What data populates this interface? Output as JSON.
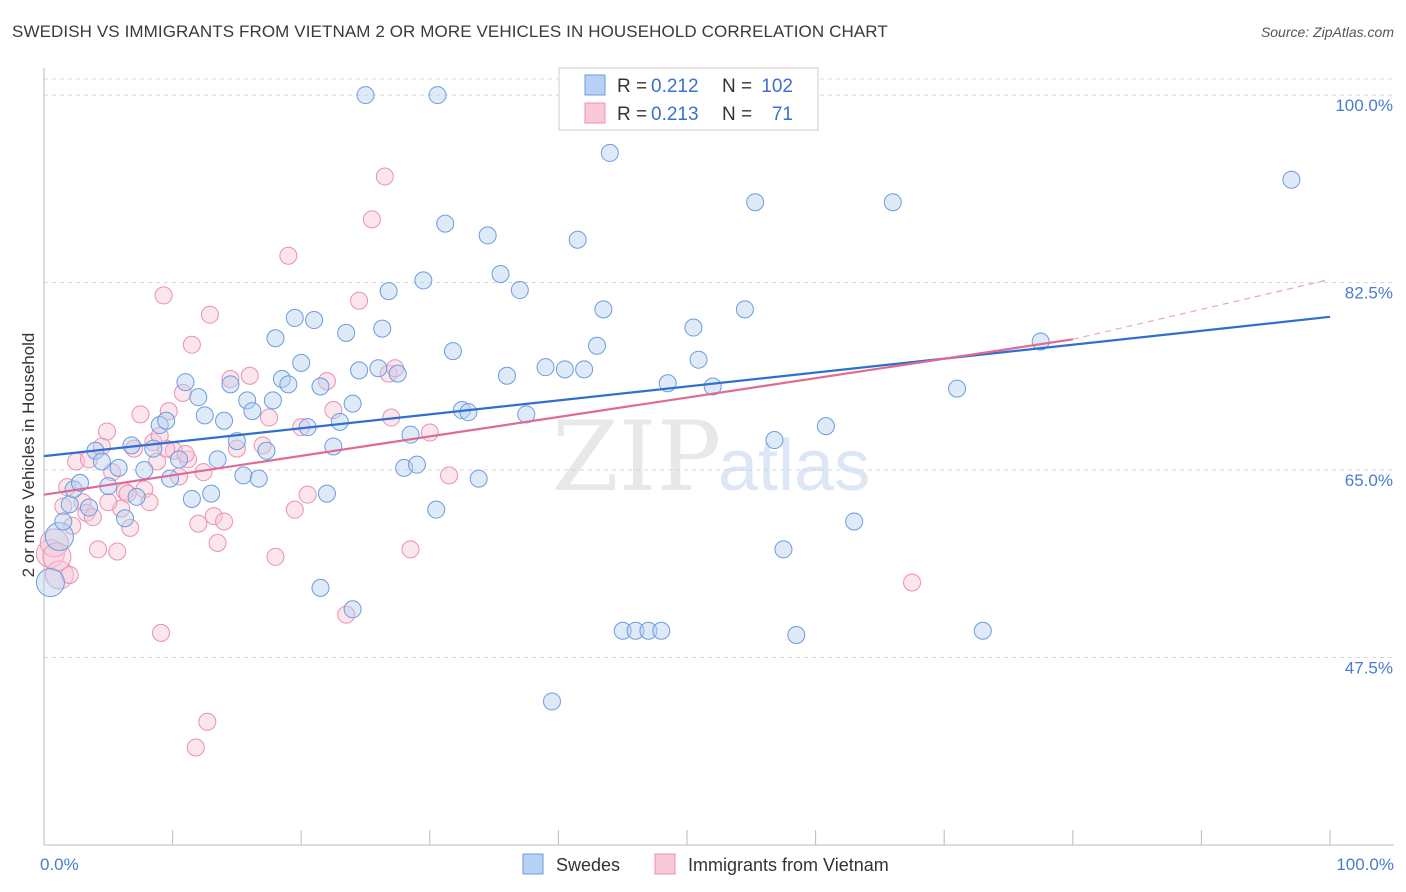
{
  "header": {
    "title": "SWEDISH VS IMMIGRANTS FROM VIETNAM 2 OR MORE VEHICLES IN HOUSEHOLD CORRELATION CHART",
    "source": "Source: ZipAtlas.com"
  },
  "watermark": {
    "zip": "ZIP",
    "atlas": "atlas"
  },
  "legend_top": {
    "rows": [
      {
        "r_label": "R = ",
        "r_value": "0.212",
        "n_label": "N = ",
        "n_value": "102"
      },
      {
        "r_label": "R = ",
        "r_value": "0.213",
        "n_label": "N = ",
        "n_value": "71"
      }
    ]
  },
  "chart_data": {
    "type": "scatter",
    "ylabel": "2 or more Vehicles in Household",
    "xlim": [
      0,
      100
    ],
    "ylim": [
      30,
      101.5
    ],
    "x_tick_labels": [
      {
        "value": 0,
        "label": "0.0%"
      },
      {
        "value": 100,
        "label": "100.0%"
      }
    ],
    "y_ticks": [
      {
        "value": 47.5,
        "label": "47.5%"
      },
      {
        "value": 65.0,
        "label": "65.0%"
      },
      {
        "value": 82.5,
        "label": "82.5%"
      },
      {
        "value": 100.0,
        "label": "100.0%"
      }
    ],
    "grid": "horizontal dashed",
    "legend_position": "bottom",
    "colors": {
      "swedes": "#6a9de0",
      "vietnam": "#ec8fb0",
      "swedes_line": "#2f6fcf",
      "vietnam_line": "#e06a94"
    },
    "series": [
      {
        "name": "Swedes",
        "r": 0.212,
        "n": 102,
        "trend": {
          "x": [
            0,
            100
          ],
          "y": [
            66.3,
            79.3
          ]
        },
        "points": [
          [
            0.5,
            54.5
          ],
          [
            1.2,
            58.8
          ],
          [
            1.5,
            60.2
          ],
          [
            2.0,
            61.8
          ],
          [
            2.3,
            63.2
          ],
          [
            2.8,
            63.8
          ],
          [
            3.5,
            61.5
          ],
          [
            4.0,
            66.8
          ],
          [
            4.5,
            65.8
          ],
          [
            5.0,
            63.5
          ],
          [
            5.8,
            65.2
          ],
          [
            6.3,
            60.5
          ],
          [
            6.8,
            67.3
          ],
          [
            7.2,
            62.5
          ],
          [
            7.8,
            65.0
          ],
          [
            8.5,
            67.0
          ],
          [
            9.0,
            69.2
          ],
          [
            9.5,
            69.6
          ],
          [
            9.8,
            64.2
          ],
          [
            10.5,
            66.0
          ],
          [
            11.0,
            73.2
          ],
          [
            11.5,
            62.3
          ],
          [
            12.0,
            71.8
          ],
          [
            12.5,
            70.1
          ],
          [
            13.0,
            62.8
          ],
          [
            13.5,
            66.0
          ],
          [
            14.0,
            69.6
          ],
          [
            14.5,
            73.0
          ],
          [
            15.0,
            67.7
          ],
          [
            15.5,
            64.5
          ],
          [
            15.8,
            71.5
          ],
          [
            16.2,
            70.5
          ],
          [
            16.7,
            64.2
          ],
          [
            17.3,
            66.8
          ],
          [
            17.8,
            71.5
          ],
          [
            18.0,
            77.3
          ],
          [
            18.5,
            73.5
          ],
          [
            19.0,
            73.0
          ],
          [
            19.5,
            79.2
          ],
          [
            20.0,
            75.0
          ],
          [
            20.5,
            69.0
          ],
          [
            21.0,
            79.0
          ],
          [
            21.5,
            72.8
          ],
          [
            22.0,
            62.8
          ],
          [
            22.5,
            67.2
          ],
          [
            23.0,
            69.5
          ],
          [
            23.5,
            77.8
          ],
          [
            24.0,
            71.2
          ],
          [
            24.5,
            74.3
          ],
          [
            25.0,
            100.0
          ],
          [
            26.0,
            74.5
          ],
          [
            26.3,
            78.2
          ],
          [
            26.8,
            81.7
          ],
          [
            27.5,
            74.0
          ],
          [
            28.0,
            65.2
          ],
          [
            28.5,
            68.3
          ],
          [
            29.0,
            65.5
          ],
          [
            29.5,
            82.7
          ],
          [
            30.5,
            61.3
          ],
          [
            31.2,
            88.0
          ],
          [
            31.8,
            76.1
          ],
          [
            32.5,
            70.6
          ],
          [
            33.0,
            70.4
          ],
          [
            33.8,
            64.2
          ],
          [
            34.5,
            86.9
          ],
          [
            35.5,
            83.3
          ],
          [
            36.0,
            73.8
          ],
          [
            37.0,
            81.8
          ],
          [
            37.5,
            70.2
          ],
          [
            39.0,
            74.6
          ],
          [
            39.5,
            43.4
          ],
          [
            40.5,
            74.4
          ],
          [
            41.5,
            86.5
          ],
          [
            42.0,
            74.4
          ],
          [
            43.0,
            76.6
          ],
          [
            43.5,
            80.0
          ],
          [
            44.0,
            94.6
          ],
          [
            45.0,
            50.0
          ],
          [
            46.0,
            50.0
          ],
          [
            47.0,
            50.0
          ],
          [
            48.0,
            50.0
          ],
          [
            48.5,
            73.1
          ],
          [
            50.5,
            78.3
          ],
          [
            50.9,
            75.3
          ],
          [
            52.0,
            72.8
          ],
          [
            54.5,
            80.0
          ],
          [
            55.3,
            90.0
          ],
          [
            56.8,
            67.8
          ],
          [
            57.5,
            57.6
          ],
          [
            58.5,
            49.6
          ],
          [
            60.8,
            69.1
          ],
          [
            63.0,
            60.2
          ],
          [
            66.0,
            90.0
          ],
          [
            71.0,
            72.6
          ],
          [
            73.0,
            50.0
          ],
          [
            77.5,
            77.0
          ],
          [
            97.0,
            92.1
          ],
          [
            30.6,
            100.0
          ],
          [
            21.5,
            54.0
          ],
          [
            24.0,
            52.0
          ]
        ]
      },
      {
        "name": "Immigrants from Vietnam",
        "r": 0.213,
        "n": 71,
        "trend": {
          "x": [
            0,
            80
          ],
          "y": [
            62.7,
            77.2
          ]
        },
        "trend_extension": {
          "x": [
            80,
            100
          ],
          "y": [
            77.2,
            82.8
          ]
        },
        "points": [
          [
            0.5,
            57.2
          ],
          [
            0.8,
            58.2
          ],
          [
            1.2,
            55.2
          ],
          [
            1.5,
            61.6
          ],
          [
            1.8,
            63.4
          ],
          [
            2.2,
            59.8
          ],
          [
            2.5,
            65.8
          ],
          [
            3.0,
            62.0
          ],
          [
            3.3,
            61.0
          ],
          [
            3.8,
            60.6
          ],
          [
            4.2,
            57.6
          ],
          [
            4.5,
            67.2
          ],
          [
            4.9,
            68.6
          ],
          [
            5.3,
            64.8
          ],
          [
            5.7,
            57.4
          ],
          [
            6.0,
            61.4
          ],
          [
            6.3,
            63.0
          ],
          [
            6.7,
            59.6
          ],
          [
            7.0,
            67.0
          ],
          [
            7.5,
            70.2
          ],
          [
            7.8,
            63.2
          ],
          [
            8.2,
            62.0
          ],
          [
            8.5,
            67.6
          ],
          [
            8.8,
            65.8
          ],
          [
            9.1,
            49.8
          ],
          [
            9.3,
            81.3
          ],
          [
            9.7,
            70.5
          ],
          [
            10.1,
            66.8
          ],
          [
            10.5,
            64.4
          ],
          [
            10.8,
            72.2
          ],
          [
            11.2,
            66.0
          ],
          [
            11.5,
            76.7
          ],
          [
            11.8,
            39.1
          ],
          [
            12.0,
            60.0
          ],
          [
            12.4,
            64.8
          ],
          [
            12.7,
            41.5
          ],
          [
            12.9,
            79.5
          ],
          [
            13.2,
            60.7
          ],
          [
            13.5,
            58.2
          ],
          [
            14.5,
            73.5
          ],
          [
            16.0,
            73.8
          ],
          [
            17.0,
            67.3
          ],
          [
            17.5,
            69.9
          ],
          [
            18.0,
            56.9
          ],
          [
            19.0,
            85.0
          ],
          [
            19.5,
            61.3
          ],
          [
            20.5,
            62.7
          ],
          [
            22.0,
            73.3
          ],
          [
            22.5,
            70.6
          ],
          [
            23.5,
            51.5
          ],
          [
            24.5,
            80.8
          ],
          [
            25.5,
            88.4
          ],
          [
            26.5,
            92.4
          ],
          [
            26.8,
            74.0
          ],
          [
            27.0,
            69.9
          ],
          [
            27.3,
            74.5
          ],
          [
            28.5,
            57.6
          ],
          [
            30.0,
            68.5
          ],
          [
            31.5,
            64.5
          ],
          [
            67.5,
            54.5
          ],
          [
            1.0,
            56.9
          ],
          [
            2.0,
            55.2
          ],
          [
            3.5,
            66.0
          ],
          [
            5.0,
            62.0
          ],
          [
            6.5,
            62.8
          ],
          [
            9.5,
            67.0
          ],
          [
            11.0,
            66.5
          ],
          [
            15.0,
            67.0
          ],
          [
            20.0,
            69.0
          ],
          [
            14.0,
            60.2
          ],
          [
            9.0,
            68.2
          ]
        ]
      }
    ]
  },
  "legend_bottom": {
    "items": [
      "Swedes",
      "Immigrants from Vietnam"
    ]
  }
}
